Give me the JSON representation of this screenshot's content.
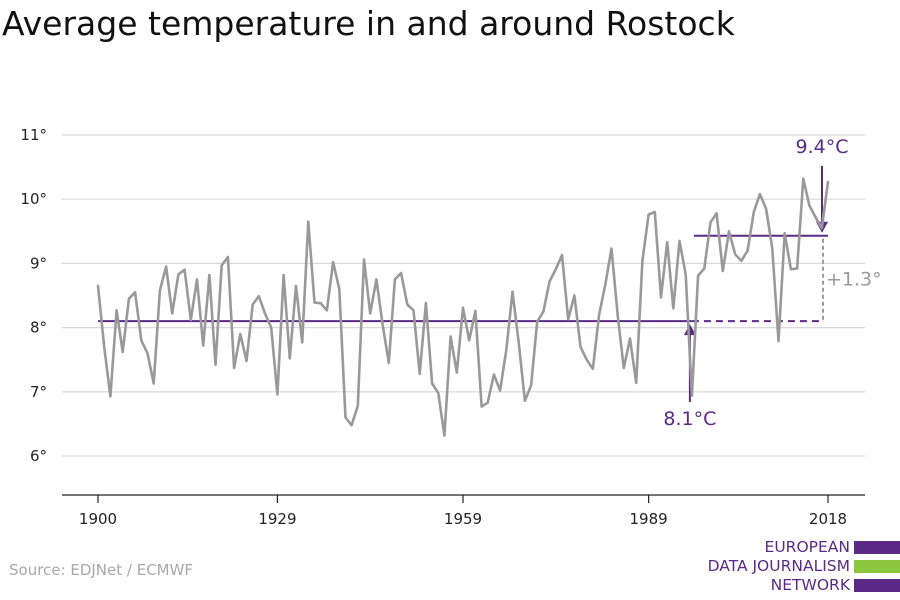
{
  "chart_data": {
    "type": "line",
    "title": "Average temperature in and around Rostock",
    "x_start": 1900,
    "x_end": 2018,
    "x_ticks": [
      1900,
      1929,
      1959,
      1989,
      2018
    ],
    "y_ticks": [
      6,
      7,
      8,
      9,
      10,
      11
    ],
    "y_tick_labels": [
      "6°",
      "7°",
      "8°",
      "9°",
      "10°",
      "11°"
    ],
    "ylim": [
      5.4,
      11.3
    ],
    "grid": true,
    "series": [
      {
        "values": [
          8.65,
          7.7,
          6.93,
          8.27,
          7.62,
          8.45,
          8.55,
          7.8,
          7.6,
          7.13,
          8.58,
          8.95,
          8.22,
          8.83,
          8.9,
          8.12,
          8.75,
          7.72,
          8.82,
          7.42,
          8.97,
          9.1,
          7.37,
          7.9,
          7.48,
          8.36,
          8.49,
          8.22,
          8.0,
          6.96,
          8.82,
          7.52,
          8.65,
          7.77,
          9.65,
          8.39,
          8.38,
          8.27,
          9.02,
          8.6,
          6.6,
          6.48,
          6.78,
          9.06,
          8.22,
          8.75,
          8.05,
          7.45,
          8.75,
          8.85,
          8.36,
          8.27,
          7.28,
          8.38,
          7.13,
          6.98,
          6.32,
          7.86,
          7.3,
          8.31,
          7.8,
          8.26,
          6.77,
          6.83,
          7.27,
          7.02,
          7.65,
          8.56,
          7.77,
          6.86,
          7.1,
          8.09,
          8.25,
          8.72,
          8.91,
          9.13,
          8.13,
          8.5,
          7.7,
          7.5,
          7.36,
          8.2,
          8.67,
          9.23,
          8.19,
          7.37,
          7.83,
          7.14,
          9.04,
          9.76,
          9.8,
          8.47,
          9.33,
          8.3,
          9.35,
          8.83,
          6.94,
          8.81,
          8.92,
          9.64,
          9.78,
          8.88,
          9.5,
          9.14,
          9.04,
          9.2,
          9.8,
          10.08,
          9.85,
          9.23,
          7.79,
          9.47,
          8.91,
          8.92,
          10.32,
          9.9,
          9.72,
          9.55,
          10.27
        ]
      }
    ],
    "reference_lines": [
      {
        "label": "8.1°C",
        "value": 8.1,
        "from": 1900,
        "to": 2018,
        "solid_to": 1996
      },
      {
        "label": "9.4°C",
        "value": 9.43,
        "from": 1996,
        "to": 2018
      }
    ],
    "difference_label": "+1.3°"
  },
  "source": "Source: EDJNet / ECMWF",
  "logo": {
    "lines": [
      "EUROPEAN",
      "DATA JOURNALISM",
      "NETWORK"
    ]
  },
  "colors": {
    "series": "#999999",
    "reference": "#5b2a86",
    "grid": "#d9d9d9",
    "logo_green": "#8cc63f",
    "logo_purple": "#5b2a86"
  }
}
